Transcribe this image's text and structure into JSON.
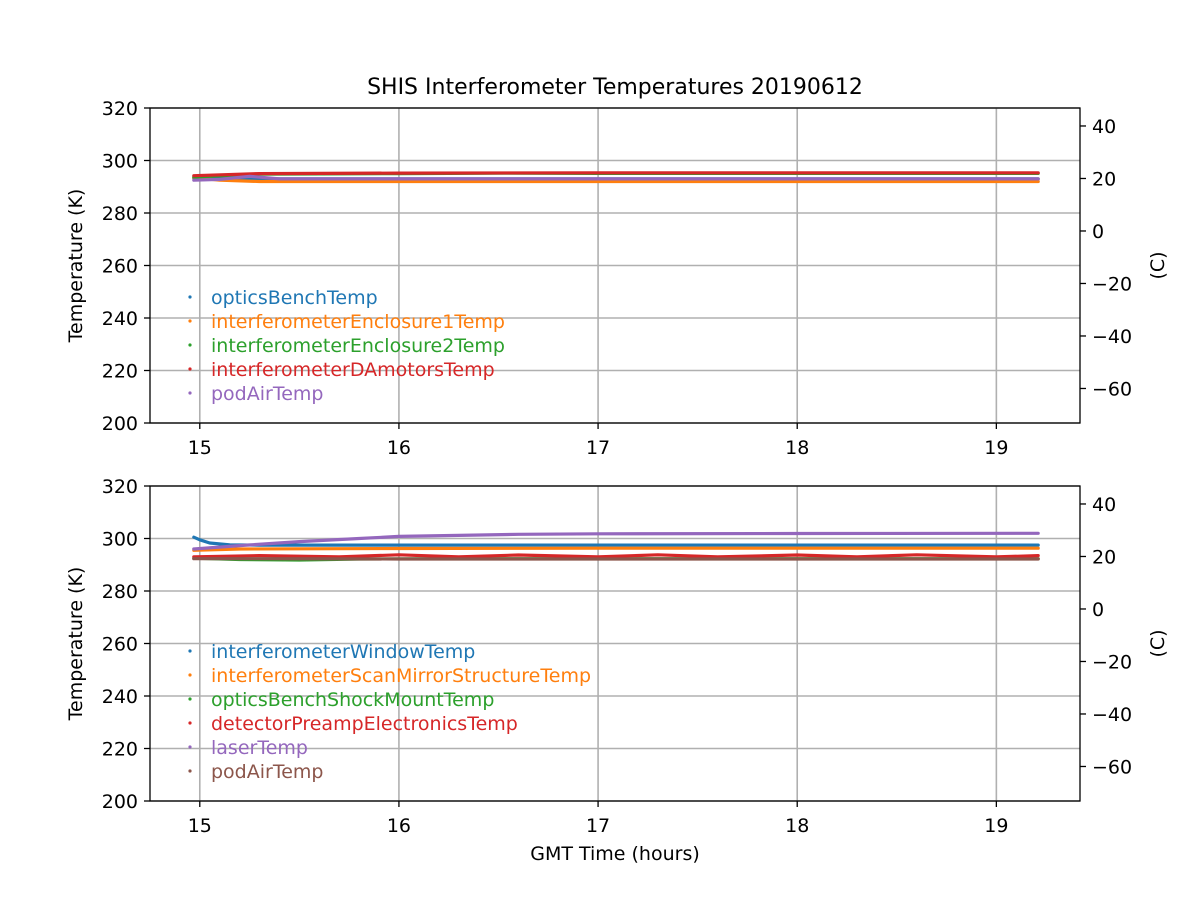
{
  "figure": {
    "title": "SHIS Interferometer Temperatures 20190612"
  },
  "chart_data": [
    {
      "type": "line",
      "xlabel": "",
      "ylabel": "Temperature (K)",
      "ylabel_right": "(C)",
      "xlim": [
        14.75,
        19.42
      ],
      "ylim": [
        200,
        320
      ],
      "ylim_right": [
        -73.15,
        46.85
      ],
      "xticks": [
        "15",
        "16",
        "17",
        "18",
        "19"
      ],
      "yticks": [
        "200",
        "220",
        "240",
        "260",
        "280",
        "300",
        "320"
      ],
      "yticks_right": [
        "−60",
        "−40",
        "−20",
        "0",
        "20",
        "40"
      ],
      "grid": true,
      "legend_position": "lower-left",
      "series": [
        {
          "name": "opticsBenchTemp",
          "color": "#1f77b4",
          "x": [
            14.97,
            15.3,
            16.0,
            17.0,
            18.0,
            19.21
          ],
          "y": [
            293.2,
            293.0,
            293.0,
            293.0,
            293.0,
            293.0
          ]
        },
        {
          "name": "interferometerEnclosure1Temp",
          "color": "#ff7f0e",
          "x": [
            14.97,
            15.1,
            15.3,
            16.0,
            17.0,
            18.0,
            19.21
          ],
          "y": [
            293.5,
            292.5,
            292.0,
            292.0,
            292.0,
            292.0,
            292.0
          ]
        },
        {
          "name": "interferometerEnclosure2Temp",
          "color": "#2ca02c",
          "x": [
            14.97,
            15.3,
            16.0,
            16.5,
            17.0,
            18.0,
            19.21
          ],
          "y": [
            293.7,
            294.8,
            295.0,
            295.2,
            295.1,
            295.1,
            295.1
          ]
        },
        {
          "name": "interferometerDAmotorsTemp",
          "color": "#d62728",
          "x": [
            14.97,
            15.3,
            16.0,
            17.0,
            18.0,
            19.21
          ],
          "y": [
            294.2,
            295.0,
            295.2,
            295.3,
            295.3,
            295.3
          ]
        },
        {
          "name": "podAirTemp",
          "color": "#9467bd",
          "x": [
            14.97,
            15.1,
            15.25,
            15.4,
            16.0,
            17.0,
            18.0,
            19.21
          ],
          "y": [
            292.5,
            292.8,
            294.0,
            293.0,
            293.0,
            293.0,
            293.0,
            293.0
          ]
        }
      ]
    },
    {
      "type": "line",
      "xlabel": "GMT Time (hours)",
      "ylabel": "Temperature (K)",
      "ylabel_right": "(C)",
      "xlim": [
        14.75,
        19.42
      ],
      "ylim": [
        200,
        320
      ],
      "ylim_right": [
        -73.15,
        46.85
      ],
      "xticks": [
        "15",
        "16",
        "17",
        "18",
        "19"
      ],
      "yticks": [
        "200",
        "220",
        "240",
        "260",
        "280",
        "300",
        "320"
      ],
      "yticks_right": [
        "−60",
        "−40",
        "−20",
        "0",
        "20",
        "40"
      ],
      "grid": true,
      "legend_position": "lower-left",
      "series": [
        {
          "name": "interferometerWindowTemp",
          "color": "#1f77b4",
          "x": [
            14.97,
            15.0,
            15.05,
            15.15,
            15.3,
            16.0,
            17.0,
            18.0,
            19.21
          ],
          "y": [
            300.5,
            299.5,
            298.3,
            297.6,
            297.5,
            297.5,
            297.5,
            297.5,
            297.5
          ]
        },
        {
          "name": "interferometerScanMirrorStructureTemp",
          "color": "#ff7f0e",
          "x": [
            14.97,
            15.2,
            16.0,
            17.0,
            18.0,
            19.21
          ],
          "y": [
            295.5,
            296.0,
            296.2,
            296.3,
            296.3,
            296.3
          ]
        },
        {
          "name": "opticsBenchShockMountTemp",
          "color": "#2ca02c",
          "x": [
            14.97,
            15.2,
            15.5,
            15.8,
            16.2,
            17.0,
            18.0,
            19.21
          ],
          "y": [
            292.5,
            292.0,
            291.8,
            292.2,
            292.3,
            292.3,
            292.3,
            292.3
          ]
        },
        {
          "name": "detectorPreampElectronicsTemp",
          "color": "#d62728",
          "x": [
            14.97,
            15.3,
            15.7,
            16.0,
            16.3,
            16.6,
            17.0,
            17.3,
            17.6,
            18.0,
            18.3,
            18.6,
            19.0,
            19.21
          ],
          "y": [
            293.0,
            293.5,
            293.0,
            293.8,
            293.0,
            293.7,
            293.0,
            293.8,
            293.0,
            293.7,
            293.0,
            293.8,
            293.0,
            293.5
          ]
        },
        {
          "name": "laserTemp",
          "color": "#9467bd",
          "x": [
            14.97,
            15.2,
            15.5,
            15.8,
            16.0,
            16.3,
            16.6,
            17.0,
            18.0,
            19.21
          ],
          "y": [
            296.0,
            297.3,
            298.8,
            300.0,
            300.8,
            301.2,
            301.6,
            301.8,
            301.9,
            302.0
          ]
        },
        {
          "name": "podAirTemp",
          "color": "#8c564b",
          "x": [
            14.97,
            15.3,
            16.0,
            17.0,
            18.0,
            19.21
          ],
          "y": [
            292.3,
            292.3,
            292.2,
            292.2,
            292.2,
            292.2
          ]
        }
      ]
    }
  ]
}
